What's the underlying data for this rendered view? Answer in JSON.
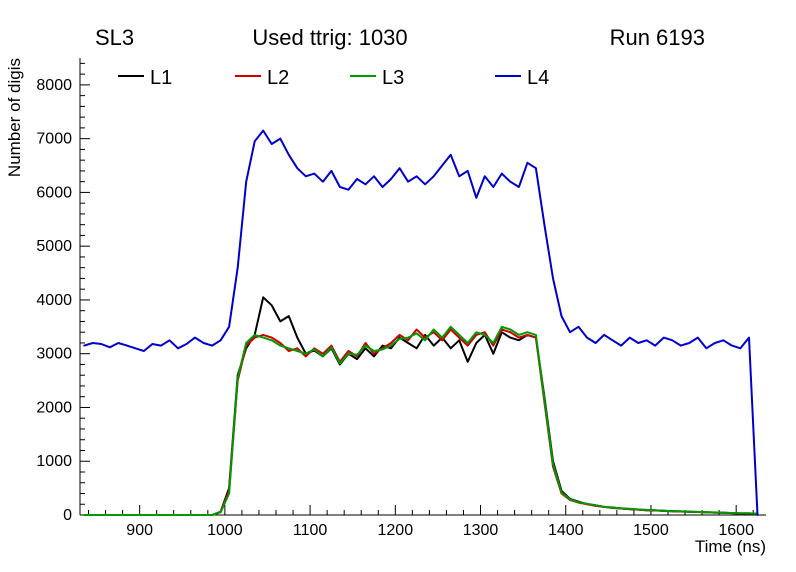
{
  "header": {
    "left": "SL3",
    "center": "Used ttrig: 1030",
    "right": "Run 6193"
  },
  "legend": [
    {
      "label": "L1",
      "color": "#000000"
    },
    {
      "label": "L2",
      "color": "#cc0000"
    },
    {
      "label": "L3",
      "color": "#009900"
    },
    {
      "label": "L4",
      "color": "#0000cc"
    }
  ],
  "chart_data": {
    "type": "line",
    "title": "Used ttrig: 1030",
    "xlabel": "Time (ns)",
    "ylabel": "Number of digis",
    "xlim": [
      830,
      1635
    ],
    "ylim": [
      0,
      8500
    ],
    "xticks": [
      900,
      1000,
      1100,
      1200,
      1300,
      1400,
      1500,
      1600
    ],
    "yticks": [
      0,
      1000,
      2000,
      3000,
      4000,
      5000,
      6000,
      7000,
      8000
    ],
    "x_minor_step": 20,
    "y_minor_step": 200,
    "grid": false,
    "legend_position": "top-inside",
    "x": [
      835,
      845,
      855,
      865,
      875,
      885,
      895,
      905,
      915,
      925,
      935,
      945,
      955,
      965,
      975,
      985,
      995,
      1005,
      1015,
      1025,
      1035,
      1045,
      1055,
      1065,
      1075,
      1085,
      1095,
      1105,
      1115,
      1125,
      1135,
      1145,
      1155,
      1165,
      1175,
      1185,
      1195,
      1205,
      1215,
      1225,
      1235,
      1245,
      1255,
      1265,
      1275,
      1285,
      1295,
      1305,
      1315,
      1325,
      1335,
      1345,
      1355,
      1365,
      1375,
      1385,
      1395,
      1405,
      1415,
      1425,
      1435,
      1445,
      1455,
      1465,
      1475,
      1485,
      1495,
      1505,
      1515,
      1525,
      1535,
      1545,
      1555,
      1565,
      1575,
      1585,
      1595,
      1605,
      1615,
      1625
    ],
    "series": [
      {
        "name": "L1",
        "color": "#000000",
        "values": [
          0,
          0,
          0,
          0,
          0,
          0,
          0,
          0,
          0,
          0,
          0,
          0,
          0,
          0,
          0,
          0,
          60,
          500,
          2600,
          3100,
          3350,
          4050,
          3900,
          3600,
          3700,
          3300,
          3000,
          3060,
          2950,
          3100,
          2800,
          3000,
          2900,
          3100,
          2950,
          3150,
          3100,
          3300,
          3200,
          3100,
          3350,
          3150,
          3300,
          3100,
          3250,
          2850,
          3200,
          3350,
          3000,
          3400,
          3300,
          3250,
          3350,
          3300,
          2200,
          1000,
          450,
          300,
          250,
          200,
          180,
          150,
          140,
          120,
          110,
          100,
          90,
          85,
          80,
          70,
          65,
          60,
          55,
          50,
          45,
          40,
          35,
          30,
          30,
          25
        ]
      },
      {
        "name": "L2",
        "color": "#cc0000",
        "values": [
          0,
          0,
          0,
          0,
          0,
          0,
          0,
          0,
          0,
          0,
          0,
          0,
          0,
          0,
          0,
          0,
          60,
          450,
          2500,
          3150,
          3300,
          3350,
          3300,
          3200,
          3050,
          3100,
          2950,
          3100,
          3000,
          3150,
          2850,
          3050,
          2950,
          3200,
          3000,
          3100,
          3200,
          3350,
          3250,
          3450,
          3300,
          3400,
          3250,
          3450,
          3300,
          3150,
          3350,
          3400,
          3150,
          3450,
          3400,
          3300,
          3350,
          3300,
          2100,
          900,
          400,
          280,
          230,
          200,
          170,
          150,
          130,
          120,
          110,
          100,
          90,
          85,
          75,
          70,
          65,
          60,
          55,
          50,
          45,
          40,
          35,
          30,
          30,
          25
        ]
      },
      {
        "name": "L3",
        "color": "#009900",
        "values": [
          0,
          0,
          0,
          0,
          0,
          0,
          0,
          0,
          0,
          0,
          0,
          0,
          0,
          0,
          0,
          0,
          50,
          400,
          2550,
          3200,
          3350,
          3300,
          3250,
          3150,
          3100,
          3050,
          3000,
          3080,
          2950,
          3120,
          2820,
          3000,
          2980,
          3150,
          3050,
          3080,
          3150,
          3280,
          3300,
          3380,
          3250,
          3450,
          3300,
          3500,
          3350,
          3200,
          3400,
          3350,
          3200,
          3500,
          3450,
          3350,
          3400,
          3350,
          2150,
          950,
          420,
          290,
          240,
          210,
          180,
          155,
          135,
          125,
          115,
          105,
          95,
          88,
          78,
          72,
          68,
          62,
          58,
          52,
          48,
          42,
          38,
          32,
          30,
          26
        ]
      },
      {
        "name": "L4",
        "color": "#0000cc",
        "values": [
          3150,
          3200,
          3180,
          3120,
          3200,
          3150,
          3100,
          3050,
          3180,
          3150,
          3250,
          3100,
          3180,
          3300,
          3200,
          3150,
          3250,
          3500,
          4600,
          6200,
          6950,
          7150,
          6900,
          7000,
          6700,
          6450,
          6300,
          6350,
          6200,
          6400,
          6100,
          6050,
          6250,
          6150,
          6300,
          6100,
          6250,
          6450,
          6200,
          6300,
          6150,
          6300,
          6500,
          6700,
          6300,
          6400,
          5900,
          6300,
          6100,
          6350,
          6200,
          6100,
          6550,
          6450,
          5400,
          4400,
          3700,
          3400,
          3500,
          3300,
          3200,
          3350,
          3250,
          3150,
          3300,
          3200,
          3250,
          3150,
          3300,
          3250,
          3150,
          3200,
          3300,
          3100,
          3200,
          3250,
          3150,
          3100,
          3300,
          0
        ]
      }
    ]
  }
}
